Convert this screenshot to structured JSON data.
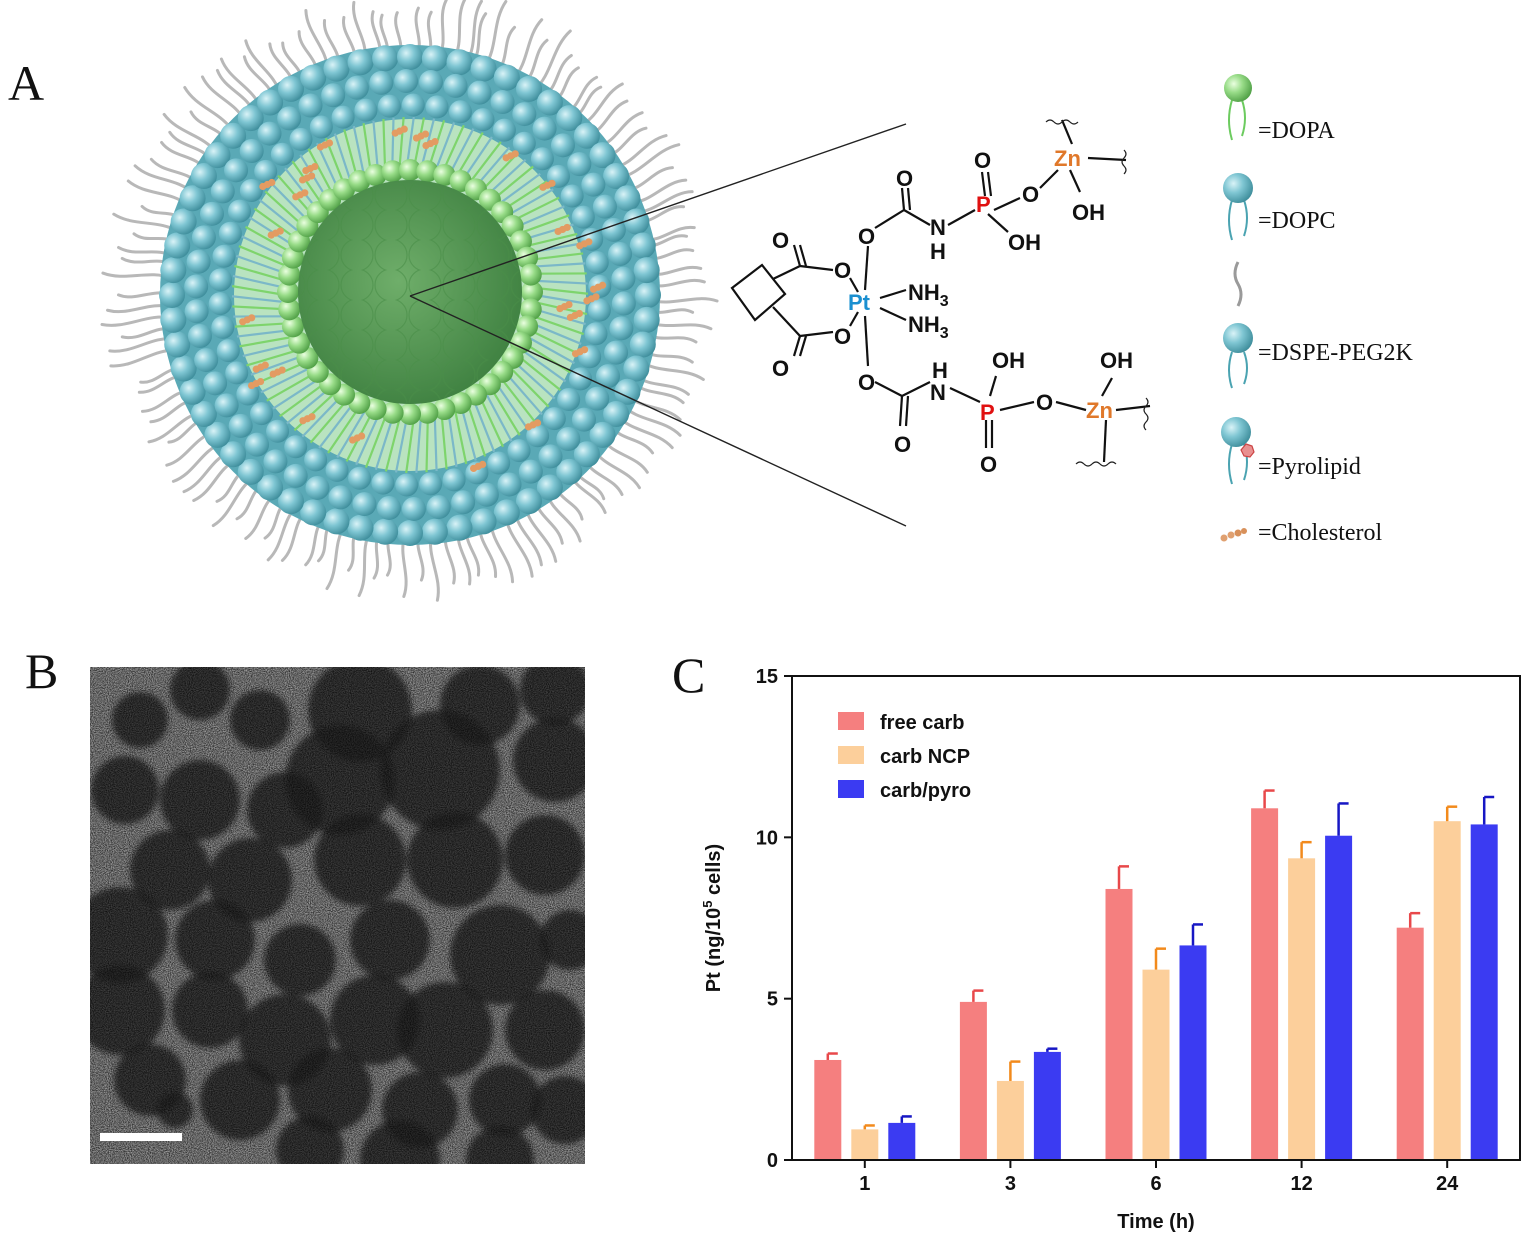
{
  "panels": {
    "a": "A",
    "b": "B",
    "c": "C"
  },
  "legend_a": [
    {
      "label": "=DOPA",
      "icon": "dopa-lipid-icon"
    },
    {
      "label": "=DOPC",
      "icon": "dopc-lipid-icon"
    },
    {
      "label": "=DSPE-PEG2K",
      "icon": "dspe-peg-lipid-icon"
    },
    {
      "label": "=Pyrolipid",
      "icon": "pyrolipid-icon"
    },
    {
      "label": "=Cholesterol",
      "icon": "cholesterol-icon"
    }
  ],
  "structure": {
    "metal": "Pt",
    "nh3": "NH",
    "nh3_sub": "3",
    "o": "O",
    "oh": "OH",
    "h": "H",
    "n": "N",
    "p": "P",
    "zn": "Zn",
    "colors": {
      "pt": "#1a8fd0",
      "p": "#e01010",
      "zn": "#e0782a"
    }
  },
  "chart_data": {
    "type": "bar",
    "categories": [
      "1",
      "3",
      "6",
      "12",
      "24"
    ],
    "xlabel": "Time (h)",
    "ylabel_prefix": "Pt (ng/10",
    "ylabel_sup": "5",
    "ylabel_suffix": " cells)",
    "ylim": [
      0,
      15
    ],
    "yticks": [
      "0",
      "5",
      "10",
      "15"
    ],
    "legend_position": "top-left",
    "grid": false,
    "series": [
      {
        "name": "free carb",
        "color": "#f57f7f",
        "err_color": "#e8484a",
        "values": [
          3.1,
          4.9,
          8.4,
          10.9,
          7.2
        ],
        "errors": [
          0.2,
          0.35,
          0.7,
          0.55,
          0.45
        ]
      },
      {
        "name": "carb NCP",
        "color": "#fccf9b",
        "err_color": "#f28a1c",
        "values": [
          0.95,
          2.45,
          5.9,
          9.35,
          10.5
        ],
        "errors": [
          0.12,
          0.6,
          0.65,
          0.5,
          0.45
        ]
      },
      {
        "name": "carb/pyro",
        "color": "#3b3bf2",
        "err_color": "#1717c4",
        "values": [
          1.15,
          3.35,
          6.65,
          10.05,
          10.4
        ],
        "errors": [
          0.2,
          0.1,
          0.65,
          1.0,
          0.85
        ]
      }
    ]
  }
}
